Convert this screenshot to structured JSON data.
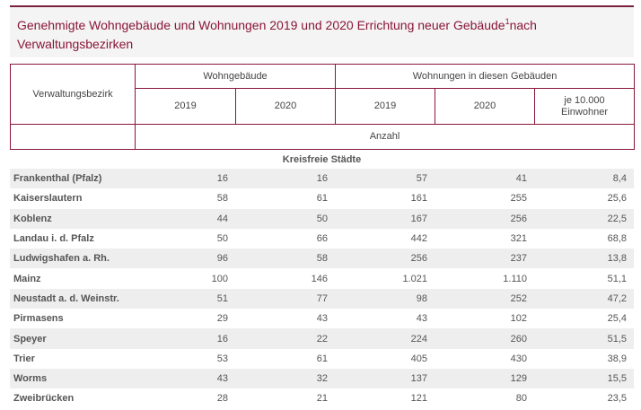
{
  "title": {
    "text": "Genehmigte Wohngebäude und Wohnungen 2019 und 2020 Errichtung neuer Gebäude",
    "footnote_mark": "1",
    "text_after": "nach Verwaltungsbezirken"
  },
  "header": {
    "region_label": "Verwaltungsbezirk",
    "group_buildings": "Wohngebäude",
    "group_dwellings": "Wohnungen in diesen Gebäuden",
    "year_2019": "2019",
    "year_2020": "2020",
    "per_inhabitants": "je 10.000 Einwohner",
    "unit": "Anzahl"
  },
  "section_title": "Kreisfreie Städte",
  "rows": [
    {
      "name": "Frankenthal (Pfalz)",
      "b2019": "16",
      "b2020": "16",
      "w2019": "57",
      "w2020": "41",
      "per10k": "8,4"
    },
    {
      "name": "Kaiserslautern",
      "b2019": "58",
      "b2020": "61",
      "w2019": "161",
      "w2020": "255",
      "per10k": "25,6"
    },
    {
      "name": "Koblenz",
      "b2019": "44",
      "b2020": "50",
      "w2019": "167",
      "w2020": "256",
      "per10k": "22,5"
    },
    {
      "name": "Landau i. d. Pfalz",
      "b2019": "50",
      "b2020": "66",
      "w2019": "442",
      "w2020": "321",
      "per10k": "68,8"
    },
    {
      "name": "Ludwigshafen a. Rh.",
      "b2019": "96",
      "b2020": "58",
      "w2019": "256",
      "w2020": "237",
      "per10k": "13,8"
    },
    {
      "name": "Mainz",
      "b2019": "100",
      "b2020": "146",
      "w2019": "1.021",
      "w2020": "1.110",
      "per10k": "51,1"
    },
    {
      "name": "Neustadt a. d. Weinstr.",
      "b2019": "51",
      "b2020": "77",
      "w2019": "98",
      "w2020": "252",
      "per10k": "47,2"
    },
    {
      "name": "Pirmasens",
      "b2019": "29",
      "b2020": "43",
      "w2019": "43",
      "w2020": "102",
      "per10k": "25,4"
    },
    {
      "name": "Speyer",
      "b2019": "16",
      "b2020": "22",
      "w2019": "224",
      "w2020": "260",
      "per10k": "51,5"
    },
    {
      "name": "Trier",
      "b2019": "53",
      "b2020": "61",
      "w2019": "405",
      "w2020": "430",
      "per10k": "38,9"
    },
    {
      "name": "Worms",
      "b2019": "43",
      "b2020": "32",
      "w2019": "137",
      "w2020": "129",
      "per10k": "15,5"
    },
    {
      "name": "Zweibrücken",
      "b2019": "28",
      "b2020": "21",
      "w2019": "121",
      "w2020": "80",
      "per10k": "23,5"
    }
  ],
  "colors": {
    "accent": "#8a1538",
    "row_stripe": "#eeeeee"
  }
}
